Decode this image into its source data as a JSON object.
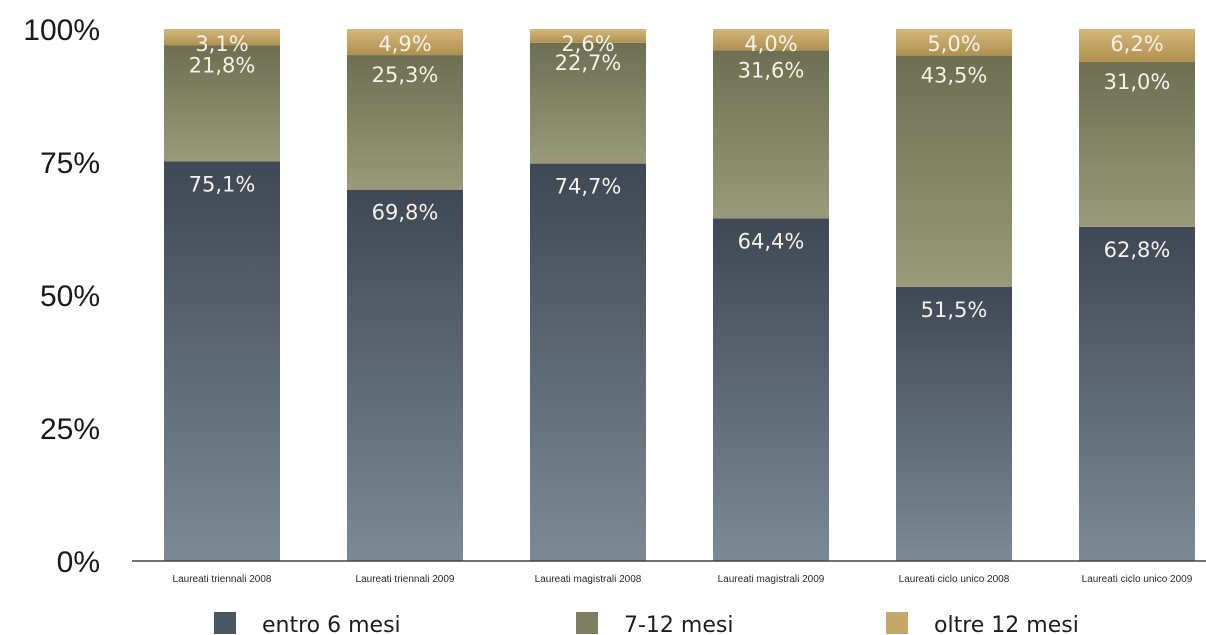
{
  "chart_data": {
    "type": "bar",
    "stacked": true,
    "categories": [
      "Laureati triennali 2008",
      "Laureati triennali 2009",
      "Laureati magistrali 2008",
      "Laureati magistrali 2009",
      "Laureati ciclo unico 2008",
      "Laureati ciclo unico 2009"
    ],
    "series": [
      {
        "name": "entro 6 mesi",
        "values": [
          75.1,
          69.8,
          74.7,
          64.4,
          51.5,
          62.8
        ],
        "labels": [
          "75,1%",
          "69,8%",
          "74,7%",
          "64,4%",
          "51,5%",
          "62,8%"
        ],
        "color": "#4c5764"
      },
      {
        "name": "7-12 mesi",
        "values": [
          21.8,
          25.3,
          22.7,
          31.6,
          43.5,
          31.0
        ],
        "labels": [
          "21,8%",
          "25,3%",
          "22,7%",
          "31,6%",
          "43,5%",
          "31,0%"
        ],
        "color": "#7d7e5f"
      },
      {
        "name": "oltre 12 mesi",
        "values": [
          3.1,
          4.9,
          2.6,
          4.0,
          5.0,
          6.2
        ],
        "labels": [
          "3,1%",
          "4,9%",
          "2,6%",
          "4,0%",
          "5,0%",
          "6,2%"
        ],
        "color": "#c4a86a"
      }
    ],
    "yticks": [
      "0%",
      "25%",
      "50%",
      "75%",
      "100%"
    ],
    "ylim": [
      0,
      100
    ],
    "legend_position": "bottom",
    "grid": false
  }
}
